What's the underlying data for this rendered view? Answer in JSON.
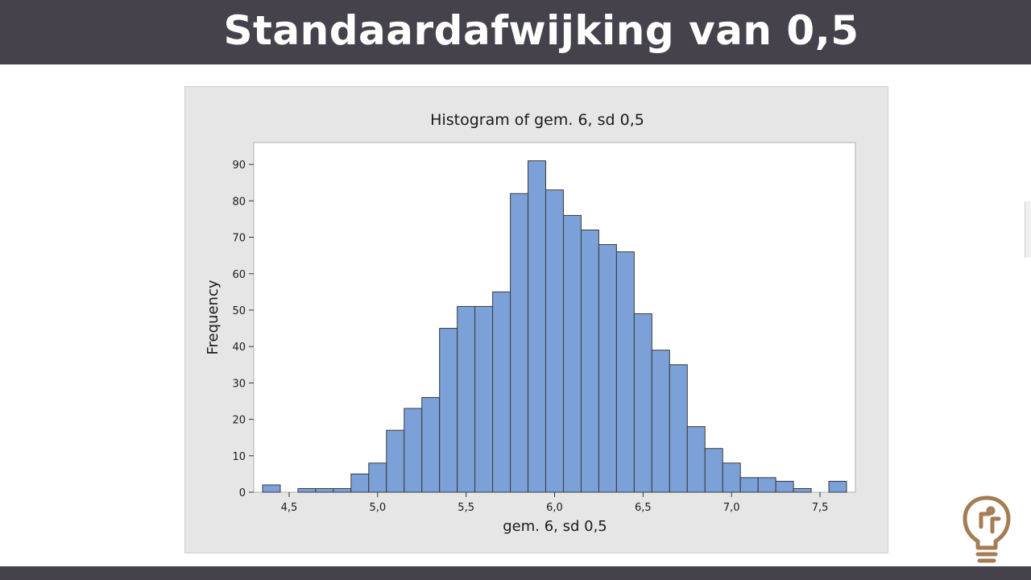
{
  "slide": {
    "title": "Standaardafwijking van 0,5"
  },
  "colors": {
    "bar_bars": "#7ba1d8",
    "bar_edge": "#3a3a3a",
    "header": "#45424b",
    "logo": "#a47d55"
  },
  "chart_data": {
    "type": "bar",
    "title": "Histogram of gem. 6, sd 0,5",
    "xlabel": "gem. 6, sd 0,5",
    "ylabel": "Frequency",
    "bin_width": 0.1,
    "x_start": 4.35,
    "xlim": [
      4.3,
      7.7
    ],
    "ylim": [
      0,
      96
    ],
    "x_ticks": [
      "4,5",
      "5,0",
      "5,5",
      "6,0",
      "6,5",
      "7,0",
      "7,5"
    ],
    "y_ticks": [
      "0",
      "10",
      "20",
      "30",
      "40",
      "50",
      "60",
      "70",
      "80",
      "90"
    ],
    "values": [
      2,
      0,
      1,
      1,
      1,
      5,
      8,
      17,
      23,
      26,
      45,
      51,
      51,
      55,
      82,
      91,
      83,
      76,
      72,
      68,
      66,
      49,
      39,
      35,
      18,
      12,
      8,
      4,
      4,
      3,
      1,
      0,
      3
    ],
    "grid": false,
    "legend": "none"
  },
  "logo": {
    "icon": "lightbulb-icon"
  }
}
